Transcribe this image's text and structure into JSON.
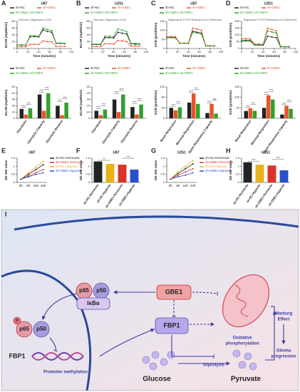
{
  "chart_data": [
    {
      "type": "line",
      "panel": "A",
      "title": "U87",
      "xlabel": "Time (minutes)",
      "ylabel": "ECAR (mpH/min)",
      "annotation": "Glucose  Oligomycin  2-DG",
      "x": [
        0,
        8,
        16,
        24,
        32,
        40,
        48,
        56,
        64,
        72,
        80,
        88
      ],
      "xlim": [
        0,
        100
      ],
      "xticks": [
        0,
        20,
        40,
        60,
        80,
        100
      ],
      "ylim": [
        0,
        80
      ],
      "yticks": [
        0,
        20,
        40,
        60,
        80
      ],
      "series": [
        {
          "name": "sh-NC",
          "color": "#222222",
          "values": [
            10,
            10,
            10,
            35,
            35,
            34,
            55,
            50,
            48,
            15,
            15,
            14
          ]
        },
        {
          "name": "sh-GBE1",
          "color": "#e8542a",
          "values": [
            5,
            5,
            5,
            12,
            12,
            12,
            22,
            20,
            20,
            6,
            6,
            6
          ]
        },
        {
          "name": "sh-GBE1+sh-FBP1",
          "color": "#33a02c",
          "values": [
            10,
            11,
            10,
            38,
            38,
            36,
            60,
            56,
            53,
            16,
            16,
            15
          ]
        }
      ]
    },
    {
      "type": "line",
      "panel": "B",
      "title": "U251",
      "xlabel": "Time (minutes)",
      "ylabel": "ECAR (mpH/min)",
      "annotation": "Glucose  Oligomycin  2-DG",
      "x": [
        0,
        8,
        16,
        24,
        32,
        40,
        48,
        56,
        64,
        72,
        80,
        88
      ],
      "xlim": [
        0,
        100
      ],
      "xticks": [
        0,
        20,
        40,
        60,
        80,
        100
      ],
      "ylim": [
        0,
        80
      ],
      "yticks": [
        0,
        20,
        40,
        60,
        80
      ],
      "series": [
        {
          "name": "sh-NC",
          "color": "#222222",
          "values": [
            12,
            12,
            12,
            32,
            32,
            31,
            48,
            45,
            43,
            14,
            13,
            13
          ]
        },
        {
          "name": "sh-GBE1",
          "color": "#e8542a",
          "values": [
            6,
            6,
            6,
            14,
            14,
            13,
            24,
            22,
            21,
            7,
            7,
            7
          ]
        },
        {
          "name": "sh-GBE1+sh-FBP1",
          "color": "#33a02c",
          "values": [
            13,
            13,
            13,
            36,
            36,
            35,
            58,
            54,
            50,
            15,
            15,
            14
          ]
        }
      ]
    },
    {
      "type": "line",
      "panel": "C",
      "title": "U87",
      "xlabel": "Time (minutes)",
      "ylabel": "OCR (pmol/min)",
      "annotation": "Oligomycin  FCCP  Antimycin A & Rotenone",
      "x": [
        0,
        8,
        16,
        24,
        32,
        40,
        48,
        56,
        64,
        72,
        80,
        88
      ],
      "xlim": [
        0,
        100
      ],
      "xticks": [
        0,
        20,
        40,
        60,
        80,
        100
      ],
      "ylim": [
        0,
        150
      ],
      "yticks": [
        0,
        50,
        100,
        150
      ],
      "series": [
        {
          "name": "sh-NC",
          "color": "#222222",
          "values": [
            60,
            62,
            60,
            30,
            30,
            28,
            95,
            90,
            85,
            15,
            14,
            14
          ]
        },
        {
          "name": "sh-GBE1",
          "color": "#e8542a",
          "values": [
            65,
            66,
            65,
            30,
            30,
            29,
            112,
            108,
            100,
            16,
            15,
            15
          ]
        },
        {
          "name": "sh-GBE1+sh-FBP1",
          "color": "#33a02c",
          "values": [
            58,
            60,
            58,
            28,
            28,
            27,
            90,
            85,
            80,
            14,
            13,
            13
          ]
        }
      ]
    },
    {
      "type": "line",
      "panel": "D",
      "title": "U251",
      "xlabel": "Time (minutes)",
      "ylabel": "OCR (pmol/min)",
      "annotation": "Oligomycin  FCCP  Antimycin A & Rotenone",
      "x": [
        0,
        8,
        16,
        24,
        32,
        40,
        48,
        56,
        64,
        72,
        80,
        88
      ],
      "xlim": [
        0,
        100
      ],
      "xticks": [
        0,
        20,
        40,
        60,
        80,
        100
      ],
      "ylim": [
        0,
        200
      ],
      "yticks": [
        0,
        50,
        100,
        150,
        200
      ],
      "series": [
        {
          "name": "sh-NC",
          "color": "#222222",
          "values": [
            55,
            56,
            55,
            25,
            25,
            24,
            90,
            85,
            80,
            12,
            12,
            11
          ]
        },
        {
          "name": "sh-GBE1",
          "color": "#e8542a",
          "values": [
            70,
            72,
            70,
            32,
            32,
            31,
            150,
            140,
            130,
            15,
            14,
            14
          ]
        },
        {
          "name": "sh-GBE1+sh-FBP1",
          "color": "#33a02c",
          "values": [
            60,
            61,
            60,
            28,
            28,
            27,
            130,
            122,
            115,
            13,
            13,
            12
          ]
        }
      ]
    },
    {
      "type": "bar",
      "ylabel": "ECAR (mpH/min)",
      "categories": [
        "Glycolysis",
        "Glycolytic Capacity",
        "Glycolytic Reserve"
      ],
      "ylim": [
        0,
        50
      ],
      "yticks": [
        0,
        10,
        20,
        30,
        40,
        50
      ],
      "significance": [
        "****",
        "****",
        "****",
        "****",
        "****",
        "****"
      ],
      "series": [
        {
          "name": "sh-NC",
          "color": "#222222",
          "values": [
            15,
            38,
            20
          ]
        },
        {
          "name": "sh-GBE1",
          "color": "#e8542a",
          "values": [
            6,
            12,
            5
          ]
        },
        {
          "name": "sh-GBE1+sh-FBP1",
          "color": "#33a02c",
          "values": [
            16,
            40,
            25
          ]
        }
      ]
    },
    {
      "type": "bar",
      "ylabel": "ECAR (mpH/min)",
      "categories": [
        "Glycolysis",
        "Glycolytic Capacity",
        "Glycolytic Reserve"
      ],
      "ylim": [
        0,
        50
      ],
      "yticks": [
        0,
        10,
        20,
        30,
        40,
        50
      ],
      "significance": [
        "****",
        "****",
        "****",
        "****",
        "****",
        "****"
      ],
      "series": [
        {
          "name": "sh-NC",
          "color": "#222222",
          "values": [
            12,
            30,
            18
          ]
        },
        {
          "name": "sh-GBE1",
          "color": "#e8542a",
          "values": [
            5,
            10,
            6
          ]
        },
        {
          "name": "sh-GBE1+sh-FBP1",
          "color": "#33a02c",
          "values": [
            14,
            38,
            22
          ]
        }
      ]
    },
    {
      "type": "bar",
      "ylabel": "OCR (pmol/min)",
      "categories": [
        "Basal Respiration",
        "Maximal Respiration",
        "Spare Respiratory Capacity"
      ],
      "ylim": [
        0,
        120
      ],
      "yticks": [
        0,
        40,
        80,
        120
      ],
      "significance": [
        "****",
        "****",
        "****",
        "***",
        "****",
        "ns"
      ],
      "series": [
        {
          "name": "sh-NC",
          "color": "#222222",
          "values": [
            40,
            60,
            20
          ]
        },
        {
          "name": "sh-GBE1",
          "color": "#e8542a",
          "values": [
            30,
            95,
            55
          ]
        },
        {
          "name": "sh-GBE1+sh-FBP1",
          "color": "#33a02c",
          "values": [
            42,
            55,
            18
          ]
        }
      ]
    },
    {
      "type": "bar",
      "ylabel": "OCR (pmol/min)",
      "categories": [
        "Basal Respiration",
        "Maximal Respiration",
        "Spare Respiratory Capacity"
      ],
      "ylim": [
        0,
        150
      ],
      "yticks": [
        0,
        50,
        100,
        150
      ],
      "significance": [
        "****",
        "****",
        "****",
        "****",
        "****",
        "****"
      ],
      "series": [
        {
          "name": "sh-NC",
          "color": "#222222",
          "values": [
            35,
            50,
            18
          ]
        },
        {
          "name": "sh-GBE1",
          "color": "#e8542a",
          "values": [
            48,
            110,
            60
          ]
        },
        {
          "name": "sh-GBE1+sh-FBP1",
          "color": "#33a02c",
          "values": [
            36,
            90,
            45
          ]
        }
      ]
    },
    {
      "type": "line",
      "panel": "E",
      "title": "U87",
      "ylabel": "OD 450 value",
      "categories": [
        "0h",
        "8h",
        "16h",
        "24h"
      ],
      "ylim": [
        0,
        1.5
      ],
      "yticks": [
        0,
        0.5,
        1,
        1.5
      ],
      "series": [
        {
          "name": "sh-NC-Normoxia",
          "color": "#222222",
          "values": [
            0.2,
            0.5,
            0.8,
            1.1
          ]
        },
        {
          "name": "sh-GBE1-Normoxia",
          "color": "#d9342b",
          "values": [
            0.2,
            0.4,
            0.6,
            0.8
          ]
        },
        {
          "name": "sh-NC-Hypoxia",
          "color": "#e8b21b",
          "values": [
            0.2,
            0.6,
            0.95,
            1.3
          ]
        },
        {
          "name": "sh-GBE1-Hypoxia",
          "color": "#2b50c8",
          "values": [
            0.2,
            0.35,
            0.5,
            0.6
          ]
        }
      ]
    },
    {
      "type": "bar",
      "panel": "F",
      "title": "U87",
      "ylabel": "OD 450 value",
      "categories": [
        "sh-NC-Normoxia",
        "sh-NC-Hypoxia",
        "sh-GBE1-Normoxia",
        "sh-GBE1-Hypoxia"
      ],
      "ylim": [
        0,
        1.5
      ],
      "yticks": [
        0,
        0.5,
        1,
        1.5
      ],
      "values": [
        1.3,
        1.15,
        1.1,
        0.8
      ],
      "colors": [
        "#222222",
        "#e8b21b",
        "#d9342b",
        "#2b50c8"
      ],
      "significance": [
        "***",
        "****"
      ]
    },
    {
      "type": "line",
      "panel": "G",
      "title": "U251",
      "ylabel": "OD 450 value",
      "categories": [
        "0h",
        "8h",
        "16h",
        "24h"
      ],
      "ylim": [
        0,
        1.5
      ],
      "yticks": [
        0,
        0.5,
        1,
        1.5
      ],
      "series": [
        {
          "name": "sh-NC-Normoxia",
          "color": "#222222",
          "values": [
            0.2,
            0.55,
            0.85,
            1.15
          ]
        },
        {
          "name": "sh-GBE1-Normoxia",
          "color": "#d9342b",
          "values": [
            0.2,
            0.45,
            0.65,
            0.85
          ]
        },
        {
          "name": "sh-NC-Hypoxia",
          "color": "#e8b21b",
          "values": [
            0.2,
            0.65,
            1.0,
            1.35
          ]
        },
        {
          "name": "sh-GBE1-Hypoxia",
          "color": "#2b50c8",
          "values": [
            0.2,
            0.35,
            0.45,
            0.6
          ]
        }
      ]
    },
    {
      "type": "bar",
      "panel": "H",
      "title": "U251",
      "ylabel": "OD 450 value",
      "categories": [
        "sh-NC-Normoxia",
        "sh-NC-Hypoxia",
        "sh-GBE1-Normoxia",
        "sh-GBE1-Hypoxia"
      ],
      "ylim": [
        0,
        1.5
      ],
      "yticks": [
        0,
        0.5,
        1,
        1.5
      ],
      "values": [
        1.25,
        1.1,
        1.05,
        0.75
      ],
      "colors": [
        "#222222",
        "#e8b21b",
        "#d9342b",
        "#2b50c8"
      ],
      "significance": [
        "****",
        "****"
      ]
    }
  ],
  "diagram": {
    "panel": "I",
    "p65": "p65",
    "p50": "p50",
    "ikba": "IκBα",
    "gbe1": "GBE1",
    "fbp1": "FBP1",
    "phospho": "P",
    "nuclear_p65": "p65",
    "nuclear_p50": "p50",
    "gene": "FBP1",
    "methylation": "Promoter methylation",
    "oxphos": [
      "Oxidative",
      "phosphorylation"
    ],
    "warburg": [
      "Warburg",
      "Effect"
    ],
    "glioma": [
      "Glioma",
      "progression"
    ],
    "glycolysis": "Glycolysis",
    "glucose": "Glucose",
    "pyruvate": "Pyruvate"
  }
}
